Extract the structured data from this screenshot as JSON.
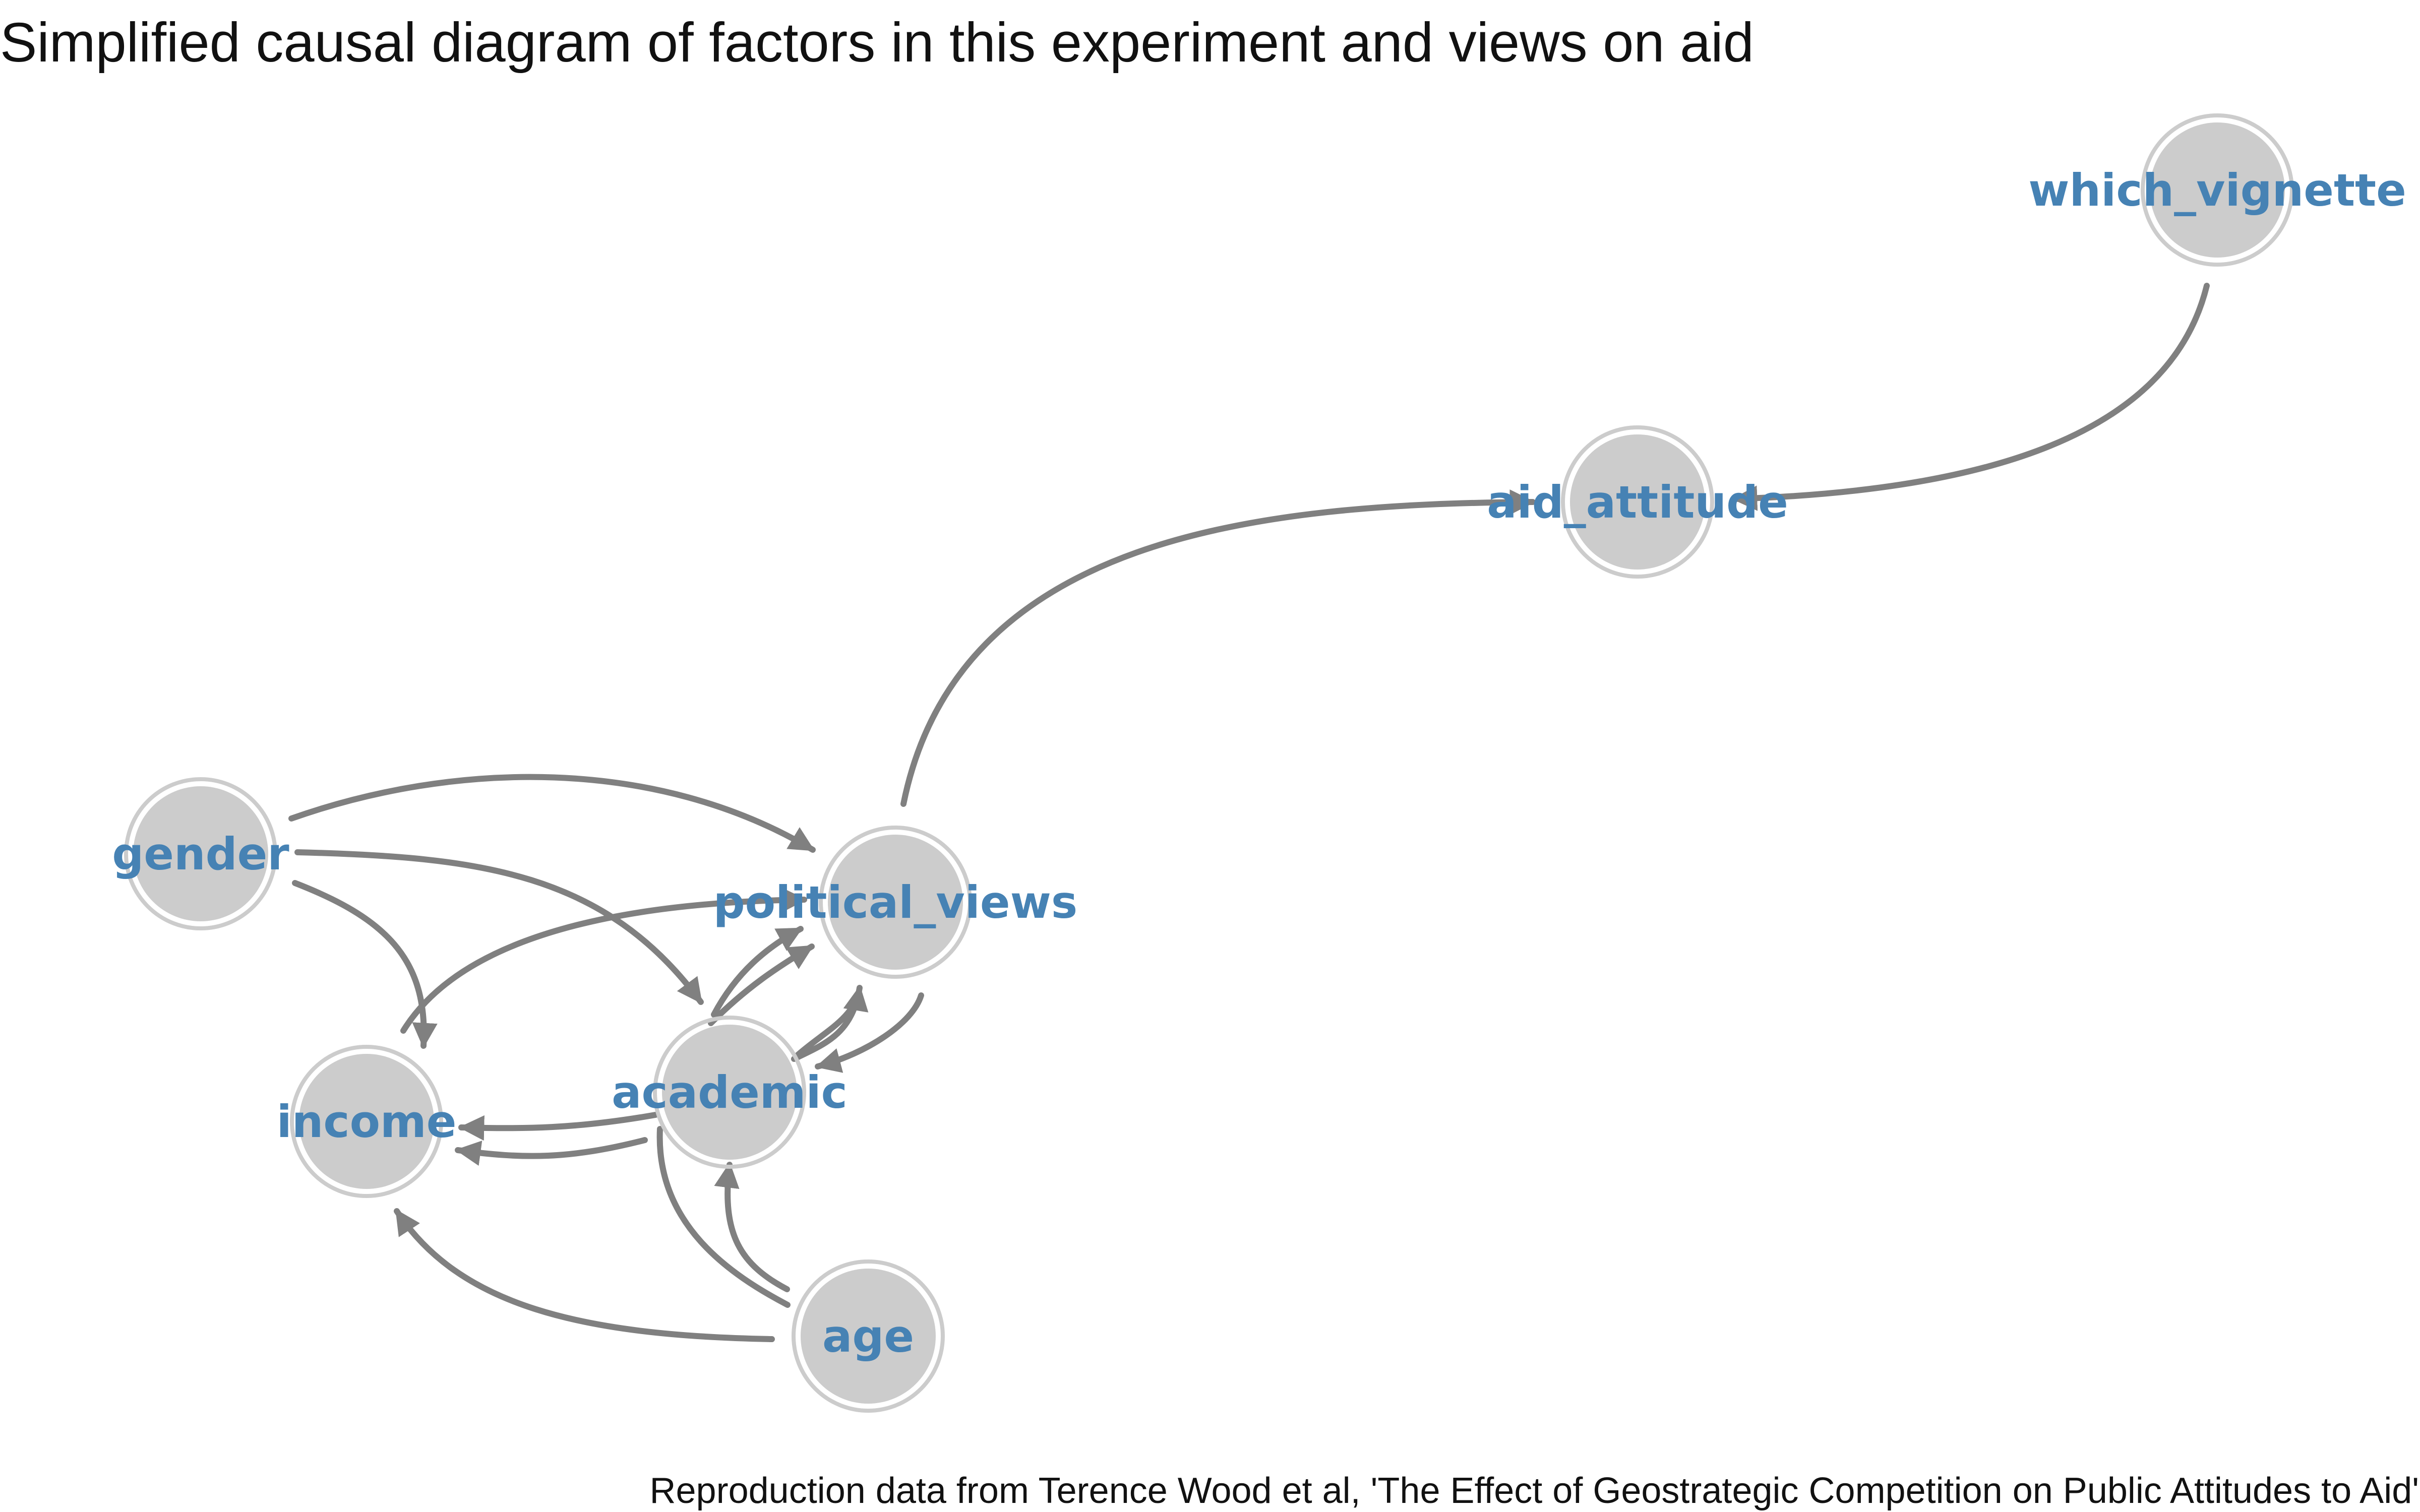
{
  "title": "Simplified causal diagram of factors in this experiment and views on aid",
  "caption": "Reproduction data from Terence Wood et al, 'The Effect of Geostrategic Competition on Public Attitudes to Aid'",
  "colors": {
    "node_fill": "#cccccc",
    "label": "#4682b4",
    "edge": "#808080",
    "text": "#111111"
  },
  "nodes": [
    {
      "id": "which_vignette",
      "label": "which_vignette"
    },
    {
      "id": "aid_attitude",
      "label": "aid_attitude"
    },
    {
      "id": "gender",
      "label": "gender"
    },
    {
      "id": "political_views",
      "label": "political_views"
    },
    {
      "id": "academic",
      "label": "academic"
    },
    {
      "id": "income",
      "label": "income"
    },
    {
      "id": "age",
      "label": "age"
    }
  ],
  "edges": [
    {
      "from": "which_vignette",
      "to": "aid_attitude"
    },
    {
      "from": "political_views",
      "to": "aid_attitude"
    },
    {
      "from": "gender",
      "to": "political_views"
    },
    {
      "from": "gender",
      "to": "academic"
    },
    {
      "from": "gender",
      "to": "income"
    },
    {
      "from": "income",
      "to": "political_views"
    },
    {
      "from": "academic",
      "to": "political_views"
    },
    {
      "from": "political_views",
      "to": "academic"
    },
    {
      "from": "academic",
      "to": "income"
    },
    {
      "from": "age",
      "to": "academic"
    },
    {
      "from": "age",
      "to": "income"
    }
  ]
}
